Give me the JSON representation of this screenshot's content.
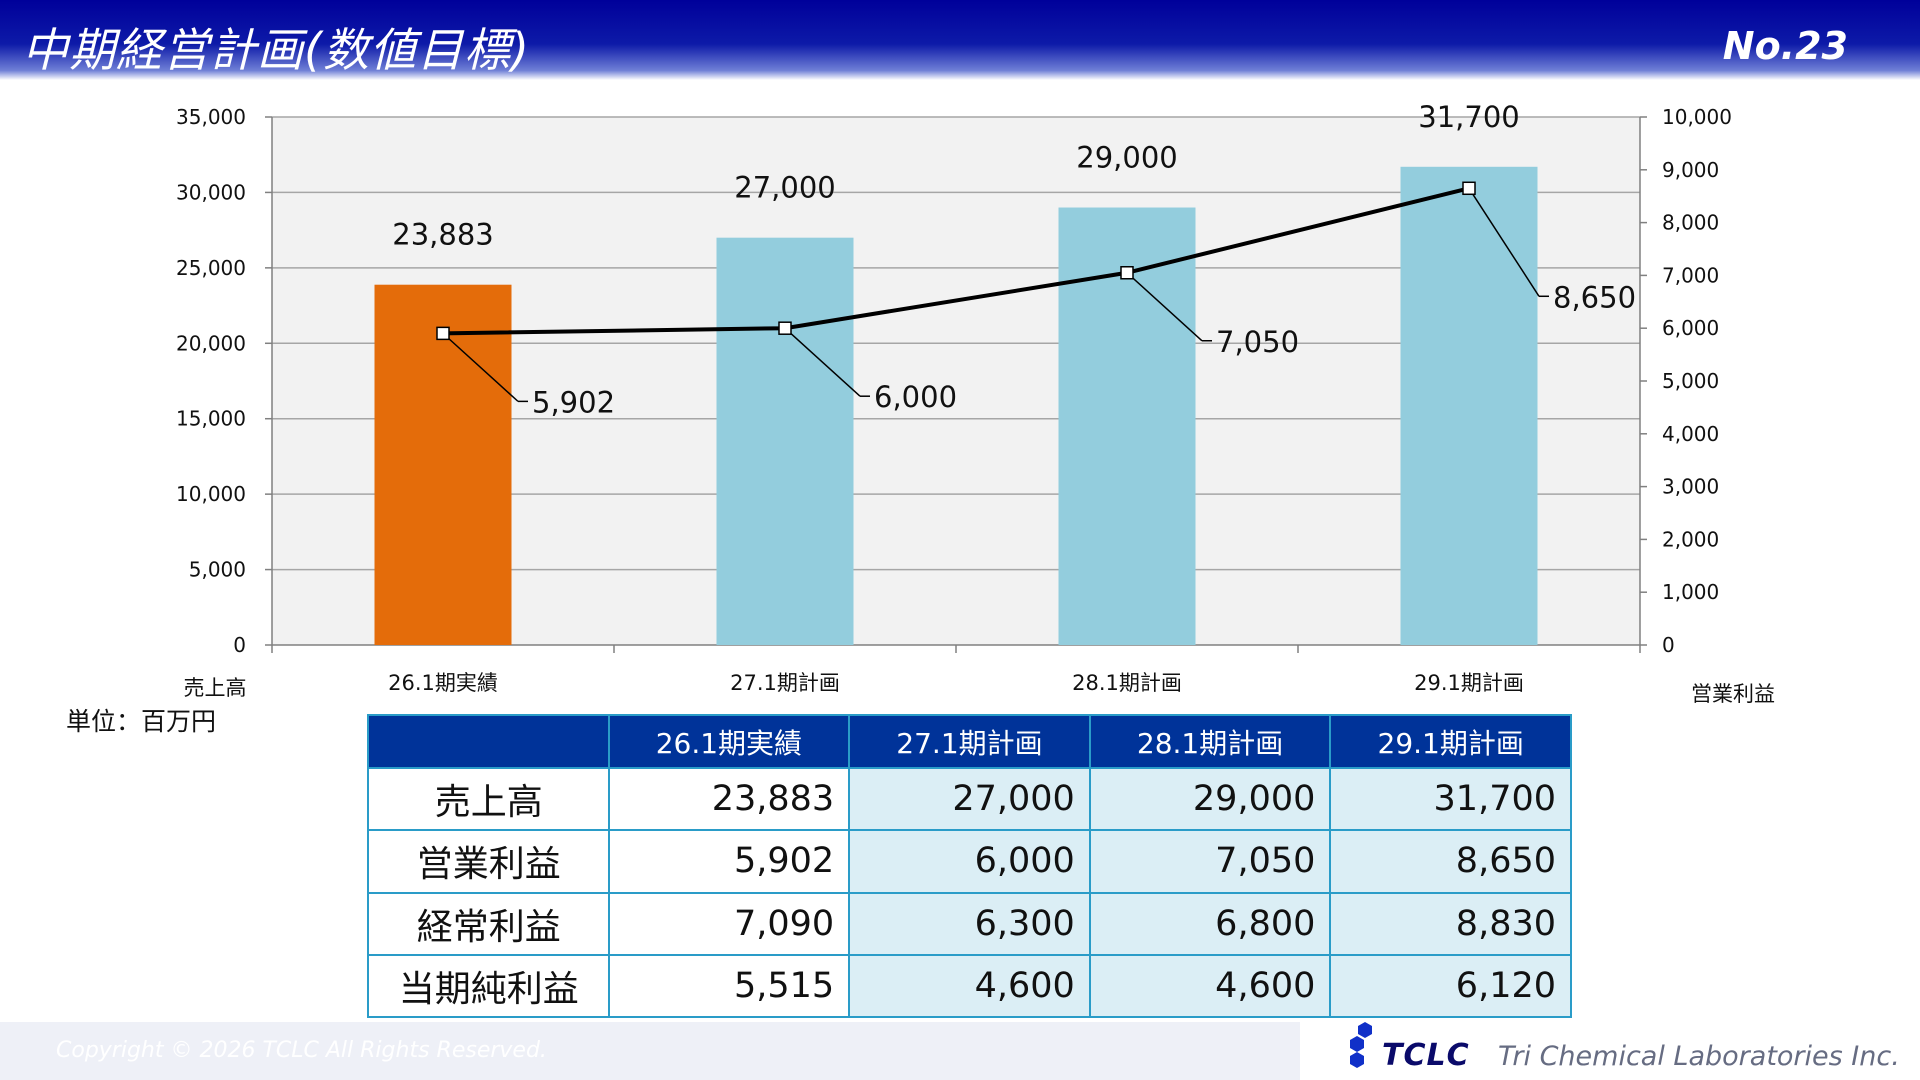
{
  "header": {
    "title": "中期経営計画(数値目標)",
    "page_number": "No.23"
  },
  "unit_label": "単位：百万円",
  "chart_data": {
    "type": "bar",
    "categories": [
      "26.1期実績",
      "27.1期計画",
      "28.1期計画",
      "29.1期計画"
    ],
    "series": [
      {
        "name": "売上高",
        "type": "bar",
        "axis": "left",
        "values": [
          23883,
          27000,
          29000,
          31700
        ],
        "labels": [
          "23,883",
          "27,000",
          "29,000",
          "31,700"
        ],
        "colors": [
          "#e46c0a",
          "#93cddd",
          "#93cddd",
          "#93cddd"
        ]
      },
      {
        "name": "営業利益",
        "type": "line",
        "axis": "right",
        "values": [
          5902,
          6000,
          7050,
          8650
        ],
        "labels": [
          "5,902",
          "6,000",
          "7,050",
          "8,650"
        ],
        "color": "#000000"
      }
    ],
    "ylabel": "売上高",
    "y2label": "営業利益",
    "ylim": [
      0,
      35000
    ],
    "y2lim": [
      0,
      10000
    ],
    "yticks": [
      "0",
      "5,000",
      "10,000",
      "15,000",
      "20,000",
      "25,000",
      "30,000",
      "35,000"
    ],
    "y2ticks": [
      "0",
      "1,000",
      "2,000",
      "3,000",
      "4,000",
      "5,000",
      "6,000",
      "7,000",
      "8,000",
      "9,000",
      "10,000"
    ],
    "grid": true,
    "plot_background": "#f2f2f2"
  },
  "table": {
    "headers": [
      "",
      "26.1期実績",
      "27.1期計画",
      "28.1期計画",
      "29.1期計画"
    ],
    "rows": [
      {
        "label": "売上高",
        "values": [
          "23,883",
          "27,000",
          "29,000",
          "31,700"
        ]
      },
      {
        "label": "営業利益",
        "values": [
          "5,902",
          "6,000",
          "7,050",
          "8,650"
        ]
      },
      {
        "label": "経常利益",
        "values": [
          "7,090",
          "6,300",
          "6,800",
          "8,830"
        ]
      },
      {
        "label": "当期純利益",
        "values": [
          "5,515",
          "4,600",
          "4,600",
          "6,120"
        ]
      }
    ]
  },
  "footer": {
    "copyright": "Copyright © 2026 TCLC All Rights Reserved.",
    "logo_text": "TCLC",
    "company": "Tri Chemical Laboratories Inc."
  }
}
